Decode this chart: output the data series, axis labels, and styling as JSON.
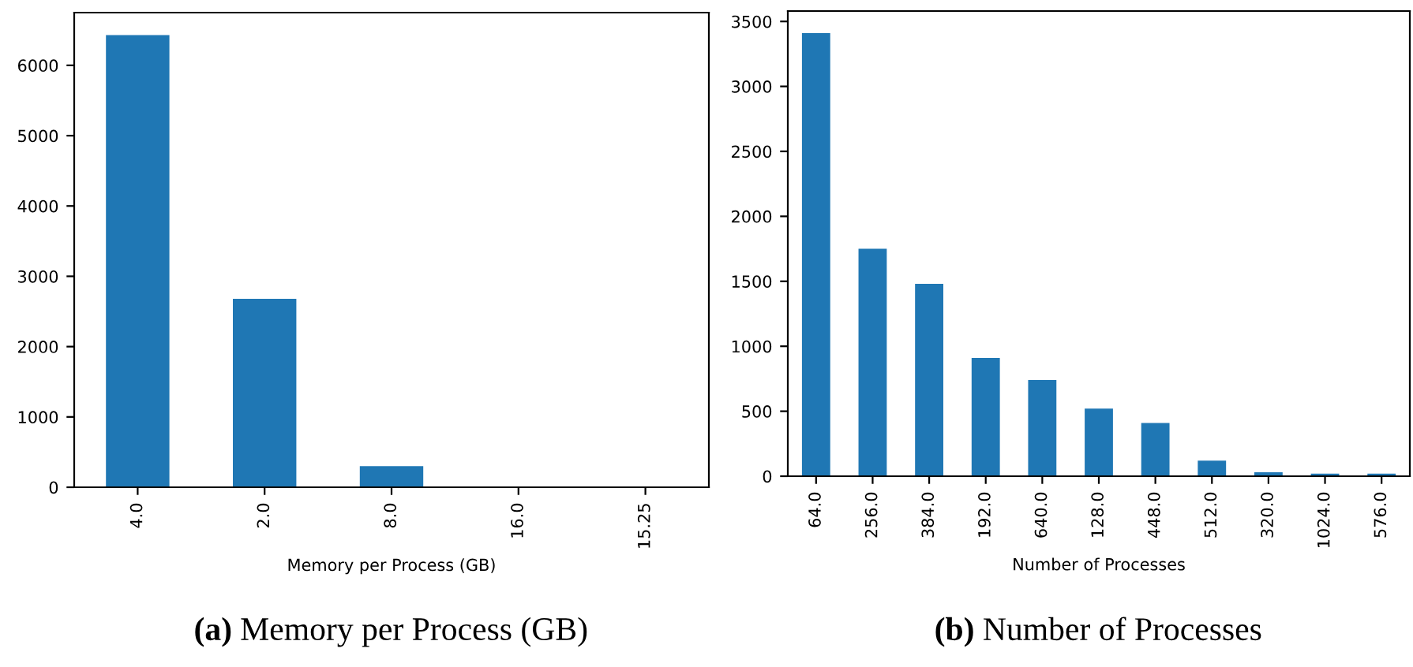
{
  "chart_data": [
    {
      "type": "bar",
      "title": "(a) Memory per Process (GB)",
      "xlabel": "Memory per Process (GB)",
      "categories": [
        "4.0",
        "2.0",
        "8.0",
        "16.0",
        "15.25"
      ],
      "values": [
        6430,
        2680,
        300,
        10,
        10
      ],
      "color": "#1f77b4",
      "ylim": [
        0,
        6750
      ],
      "yticks": [
        0,
        1000,
        2000,
        3000,
        4000,
        5000,
        6000
      ],
      "grid": false
    },
    {
      "type": "bar",
      "title": "(b) Number of Processes",
      "xlabel": "Number of Processes",
      "categories": [
        "64.0",
        "256.0",
        "384.0",
        "192.0",
        "640.0",
        "128.0",
        "448.0",
        "512.0",
        "320.0",
        "1024.0",
        "576.0"
      ],
      "values": [
        3410,
        1750,
        1480,
        910,
        740,
        520,
        410,
        120,
        30,
        20,
        20
      ],
      "color": "#1f77b4",
      "ylim": [
        0,
        3580
      ],
      "yticks": [
        0,
        500,
        1000,
        1500,
        2000,
        2500,
        3000,
        3500
      ],
      "grid": false
    }
  ]
}
